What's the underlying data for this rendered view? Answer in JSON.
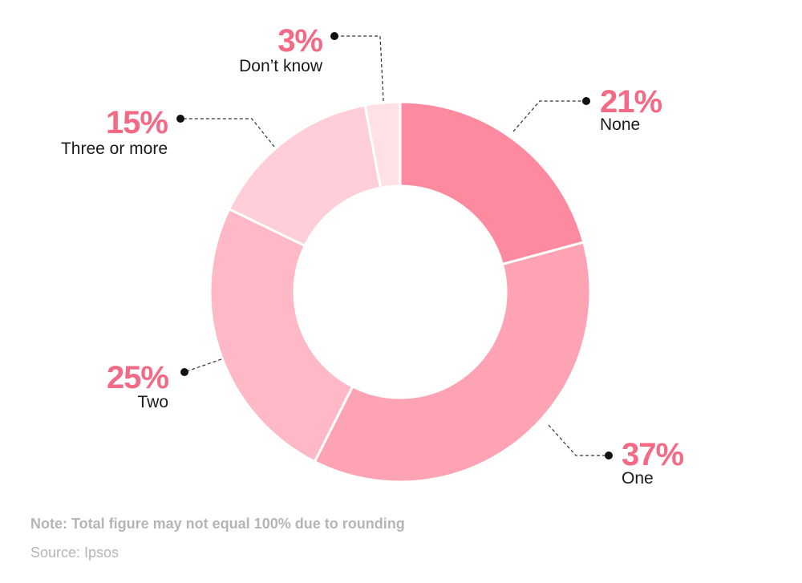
{
  "chart_data": {
    "type": "pie",
    "categories": [
      "None",
      "One",
      "Two",
      "Three or more",
      "Don’t know"
    ],
    "values": [
      21,
      37,
      25,
      15,
      3
    ],
    "value_labels": [
      "21%",
      "37%",
      "25%",
      "15%",
      "3%"
    ],
    "colors": [
      "#fe8aa0",
      "#fea3b4",
      "#ffb8c6",
      "#ffced8",
      "#ffe1e6"
    ],
    "label_color": "#f26a86",
    "donut": true,
    "legend": "none"
  },
  "footer": {
    "note": "Note: Total figure may not equal 100% due to rounding",
    "source": "Source: Ipsos"
  }
}
